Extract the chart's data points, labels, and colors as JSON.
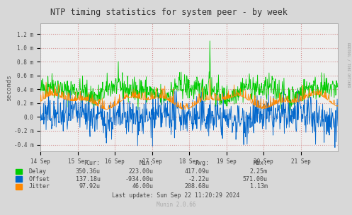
{
  "title": "NTP timing statistics for system peer - by week",
  "ylabel": "seconds",
  "bg_color": "#d8d8d8",
  "plot_bg_color": "#eeeeee",
  "grid_color": "#cc8888",
  "ylim": [
    -0.5,
    1.35
  ],
  "yticks": [
    -0.4,
    -0.2,
    0.0,
    0.2,
    0.4,
    0.6,
    0.8,
    1.0,
    1.2
  ],
  "ytick_labels": [
    "-0.4 m",
    "-0.2 m",
    "0.0",
    "0.2 m",
    "0.4 m",
    "0.6 m",
    "0.8 m",
    "1.0 m",
    "1.2 m"
  ],
  "xtick_labels": [
    "14 Sep",
    "15 Sep",
    "16 Sep",
    "17 Sep",
    "18 Sep",
    "19 Sep",
    "20 Sep",
    "21 Sep"
  ],
  "delay_color": "#00cc00",
  "offset_color": "#0066cc",
  "jitter_color": "#ff8800",
  "watermark": "RRDTOOL / TOBI OETIKER",
  "table_rows": [
    [
      "Delay",
      "350.36u",
      "223.00u",
      "417.09u",
      "2.25m"
    ],
    [
      "Offset",
      "137.18u",
      "-934.00u",
      "-2.22u",
      "571.00u"
    ],
    [
      "Jitter",
      "97.92u",
      "46.00u",
      "208.68u",
      "1.13m"
    ]
  ],
  "last_update": "Last update: Sun Sep 22 11:20:29 2024",
  "munin_version": "Munin 2.0.66",
  "n_points": 800
}
